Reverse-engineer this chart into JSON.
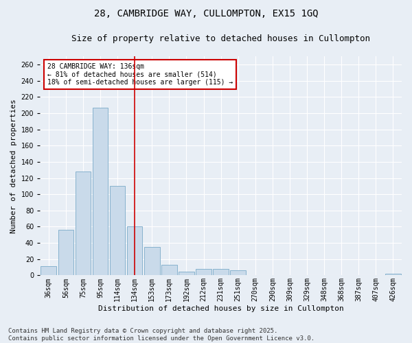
{
  "title_line1": "28, CAMBRIDGE WAY, CULLOMPTON, EX15 1GQ",
  "title_line2": "Size of property relative to detached houses in Cullompton",
  "xlabel": "Distribution of detached houses by size in Cullompton",
  "ylabel": "Number of detached properties",
  "footnote": "Contains HM Land Registry data © Crown copyright and database right 2025.\nContains public sector information licensed under the Open Government Licence v3.0.",
  "bar_labels": [
    "36sqm",
    "56sqm",
    "75sqm",
    "95sqm",
    "114sqm",
    "134sqm",
    "153sqm",
    "173sqm",
    "192sqm",
    "212sqm",
    "231sqm",
    "251sqm",
    "270sqm",
    "290sqm",
    "309sqm",
    "329sqm",
    "348sqm",
    "368sqm",
    "387sqm",
    "407sqm",
    "426sqm"
  ],
  "bar_values": [
    11,
    56,
    128,
    207,
    110,
    60,
    35,
    13,
    5,
    8,
    8,
    6,
    0,
    0,
    0,
    0,
    0,
    0,
    0,
    0,
    2
  ],
  "bar_color": "#c9daea",
  "bar_edge_color": "#7aaac8",
  "vline_x": 5,
  "vline_color": "#cc0000",
  "annotation_text": "28 CAMBRIDGE WAY: 136sqm\n← 81% of detached houses are smaller (514)\n18% of semi-detached houses are larger (115) →",
  "annotation_box_color": "#cc0000",
  "ylim": [
    0,
    270
  ],
  "yticks": [
    0,
    20,
    40,
    60,
    80,
    100,
    120,
    140,
    160,
    180,
    200,
    220,
    240,
    260
  ],
  "bg_color": "#e8eef5",
  "plot_bg_color": "#e8eef5",
  "grid_color": "#ffffff",
  "title_fontsize": 10,
  "subtitle_fontsize": 9,
  "axis_label_fontsize": 8,
  "tick_fontsize": 7,
  "annotation_fontsize": 7,
  "footnote_fontsize": 6.5
}
